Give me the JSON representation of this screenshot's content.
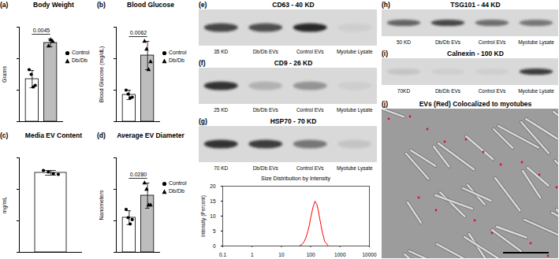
{
  "chart_data": [
    {
      "type": "bar",
      "panel": "(a)",
      "title": "Body Weight",
      "ylabel": "Grams",
      "ylim": [
        0,
        60
      ],
      "yticks": [
        0,
        20,
        40,
        60
      ],
      "tick_labels": false,
      "legend": "right",
      "annotation": "0.0045",
      "series": [
        {
          "name": "Control",
          "color": "#ffffff",
          "marker": "circle",
          "values": [
            27
          ],
          "errors": [
            5.5
          ],
          "points": [
            [
              33,
              30,
              22,
              23
            ]
          ]
        },
        {
          "name": "Db/Db",
          "color": "#bdbdbd",
          "marker": "triangle",
          "values": [
            50
          ],
          "errors": [
            2.5
          ],
          "points": [
            [
              48,
              52,
              51
            ]
          ]
        }
      ]
    },
    {
      "type": "bar",
      "panel": "(b)",
      "title": "Blood Glucose",
      "ylabel": "Blood Glucose (mg/dL)",
      "ylim": [
        0,
        600
      ],
      "yticks": [
        0,
        200,
        400,
        600
      ],
      "tick_labels": false,
      "legend": "right",
      "annotation": "0.0062",
      "series": [
        {
          "name": "Control",
          "color": "#ffffff",
          "marker": "circle",
          "values": [
            170
          ],
          "errors": [
            30
          ],
          "points": [
            [
              200,
              175,
              150,
              155
            ]
          ]
        },
        {
          "name": "Db/Db",
          "color": "#bdbdbd",
          "marker": "triangle",
          "values": [
            420
          ],
          "errors": [
            90
          ],
          "points": [
            [
              510,
              460,
              330,
              380
            ]
          ]
        }
      ]
    },
    {
      "type": "bar",
      "panel": "(c)",
      "title": "Media EV Content",
      "ylabel": "mg/mL",
      "ylim": [
        0,
        60
      ],
      "yticks": [
        0,
        20,
        40,
        60
      ],
      "tick_labels": false,
      "series": [
        {
          "color": "#ffffff",
          "marker": "circle",
          "values": [
            50.5
          ],
          "errors": [
            1.5
          ],
          "points": [
            [
              52,
              51,
              50,
              49.5
            ]
          ]
        }
      ]
    },
    {
      "type": "bar",
      "panel": "(d)",
      "title": "Average EV Diameter",
      "ylabel": "Nanometers",
      "ylim": [
        0,
        150
      ],
      "yticks": [
        0,
        50,
        100,
        150
      ],
      "tick_labels": false,
      "legend": "right",
      "annotation": "0.0280",
      "series": [
        {
          "name": "Control",
          "color": "#ffffff",
          "marker": "circle",
          "values": [
            55
          ],
          "errors": [
            11
          ],
          "points": [
            [
              68,
              55,
              45,
              52
            ]
          ]
        },
        {
          "name": "Db/Db",
          "color": "#bdbdbd",
          "marker": "triangle",
          "values": [
            90
          ],
          "errors": [
            20
          ],
          "points": [
            [
              110,
              100,
              75,
              75
            ]
          ]
        }
      ]
    },
    {
      "type": "line",
      "title": "Size Distribution by Intensity",
      "ylabel": "Intensity (Percent)",
      "log": "x",
      "xlim": [
        0.1,
        10000
      ],
      "xticks": [
        0.1,
        1,
        10,
        100,
        1000,
        10000
      ],
      "ylim": [
        0,
        20
      ],
      "yticks": [
        0,
        5,
        10,
        15,
        20
      ],
      "color": "#ff0000",
      "x": [
        40,
        50,
        60,
        70,
        80,
        90,
        100,
        120,
        140,
        160,
        180,
        200,
        250,
        300,
        400
      ],
      "values": [
        0,
        0.5,
        1.5,
        3,
        5,
        7,
        9.5,
        13,
        15,
        14,
        12,
        9.5,
        4.5,
        1.5,
        0
      ]
    }
  ],
  "blots": [
    {
      "panel": "(e)",
      "title": "CD63 - 40 KD",
      "marker_label": "35 KD",
      "marker_intensity": 0.75,
      "lanes": [
        "Db/Db EVs",
        "Control EVs",
        "Myotube Lysate"
      ],
      "band_intensity": [
        0.7,
        0.9,
        0.05
      ]
    },
    {
      "panel": "(f)",
      "title": "CD9 - 26 KD",
      "marker_label": "25 KD",
      "marker_intensity": 0.85,
      "lanes": [
        "Db/Db EVs",
        "Control EVs",
        "Myotube Lysate"
      ],
      "band_intensity": [
        0.2,
        0.35,
        0.05
      ]
    },
    {
      "panel": "(g)",
      "title": "HSP70 - 70 KD",
      "marker_label": "70 KD",
      "marker_intensity": 0.85,
      "lanes": [
        "Db/Db EVs",
        "Control EVs",
        "Myotube Lysate"
      ],
      "band_intensity": [
        0.8,
        0.5,
        0.1
      ]
    },
    {
      "panel": "(h)",
      "title": "TSG101 - 44 KD",
      "marker_label": "50 KD",
      "marker_intensity": 0.6,
      "lanes": [
        "Db/Db EVs",
        "Control EVs",
        "Myotube Lysate"
      ],
      "band_intensity": [
        0.75,
        0.55,
        0.5
      ]
    },
    {
      "panel": "(i)",
      "title": "Calnexin - 100 KD",
      "marker_label": "70KD",
      "marker_intensity": 0.1,
      "lanes": [
        "Db/Db EVs",
        "Control EVs",
        "Myotube Lysate"
      ],
      "band_intensity": [
        0.05,
        0.05,
        0.8
      ]
    }
  ],
  "micrograph": {
    "panel": "(j)",
    "title": "EVs (Red) Colocalized to myotubes"
  }
}
